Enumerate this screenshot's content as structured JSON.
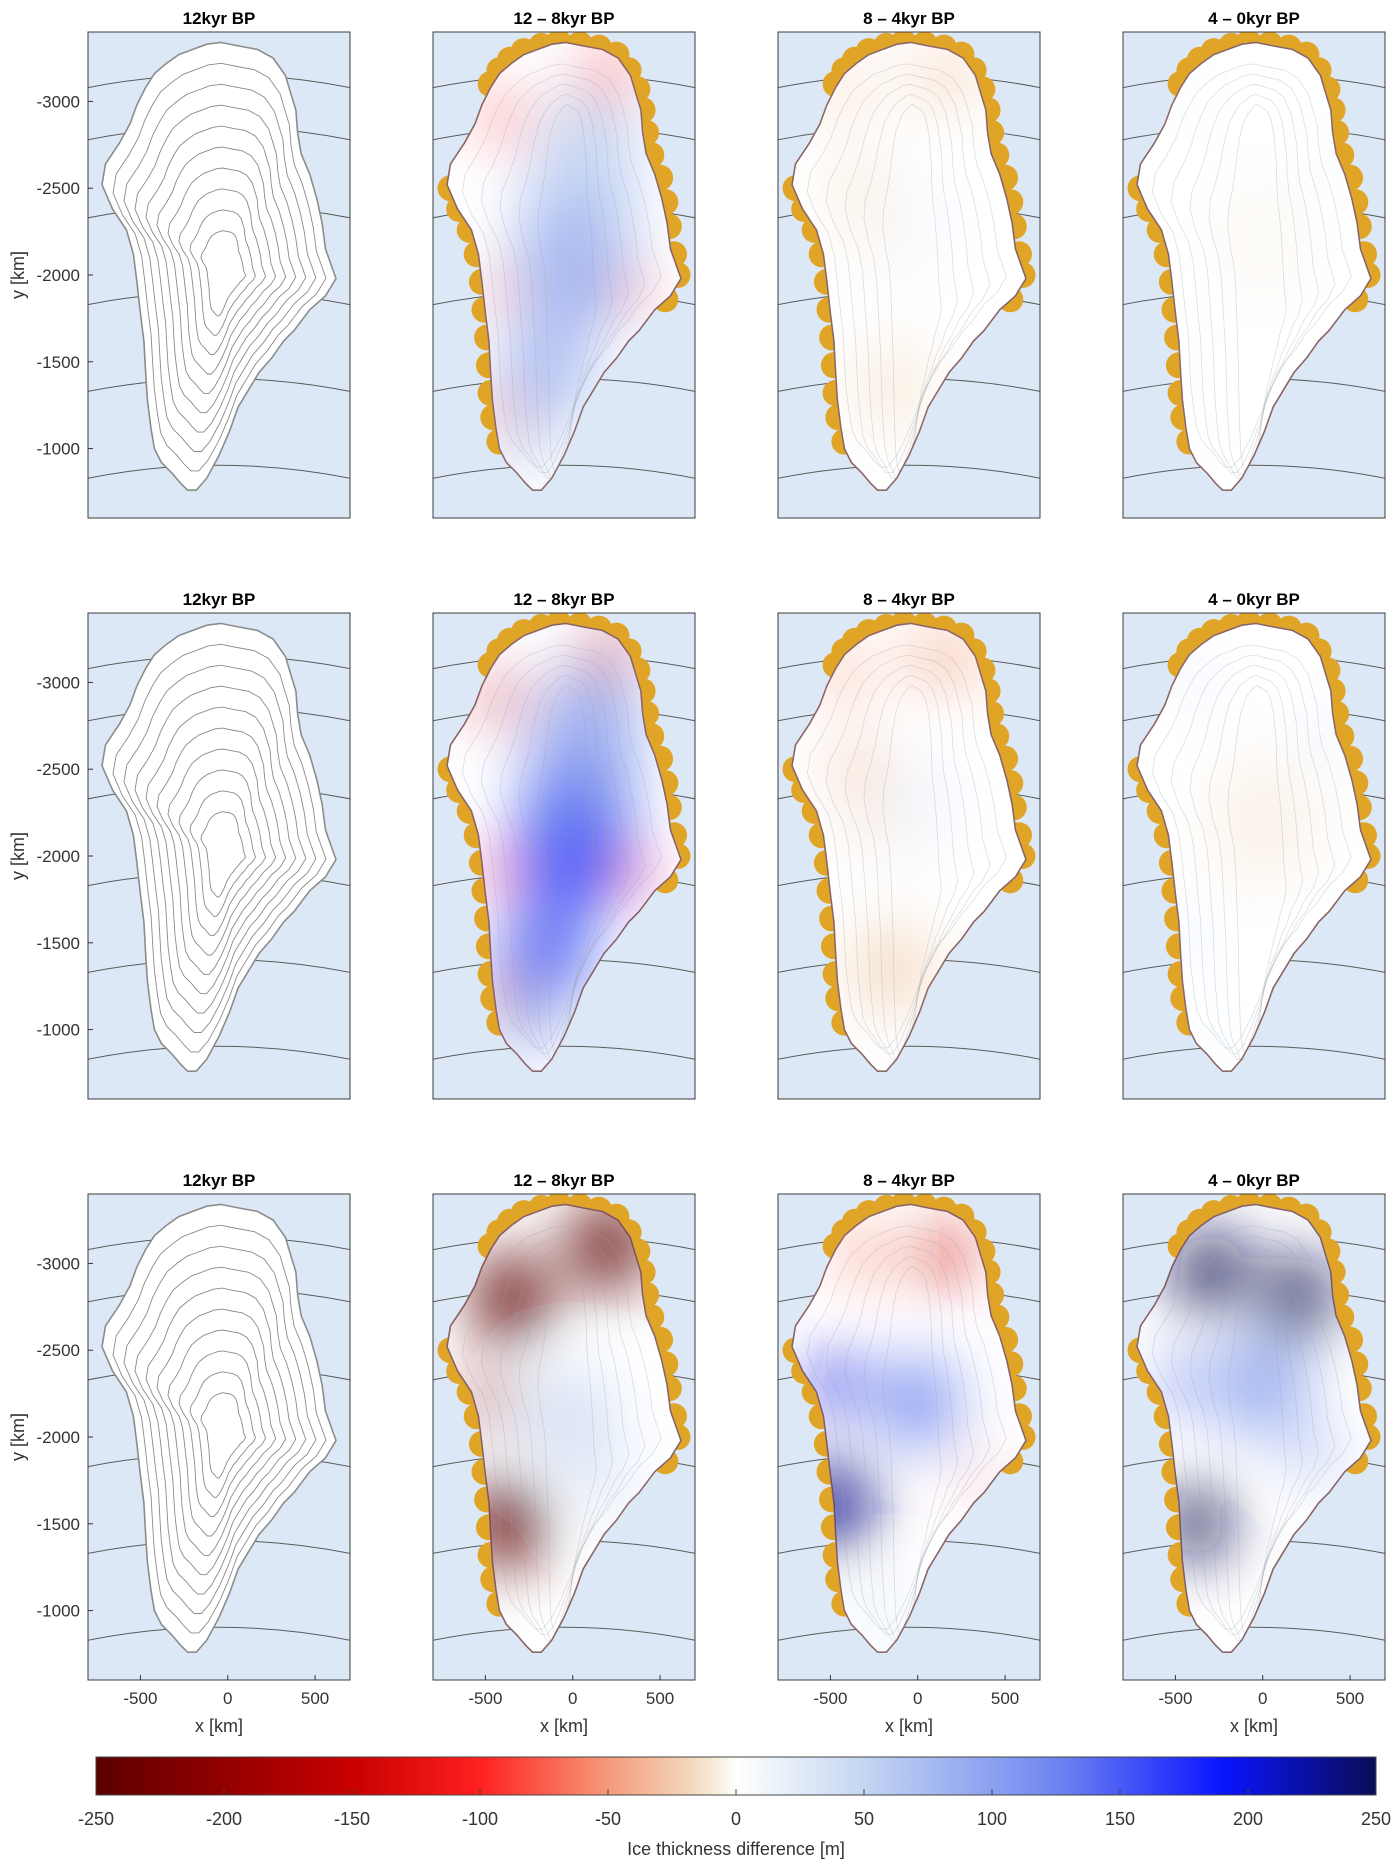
{
  "chart_data": {
    "type": "heatmap",
    "description_rows": 3,
    "description_cols": 4,
    "panel_titles": [
      "12kyr BP",
      "12 – 8kyr BP",
      "8 – 4kyr BP",
      "4 – 0kyr BP"
    ],
    "xlabel": "x [km]",
    "ylabel": "y [km]",
    "x_ticks": [
      -500,
      0,
      500
    ],
    "y_ticks": [
      -3000,
      -2500,
      -2000,
      -1500,
      -1000
    ],
    "xlim": [
      -800,
      700
    ],
    "ylim": [
      -3400,
      -600
    ],
    "y_reversed": true,
    "colorbar": {
      "label": "Ice thickness difference [m]",
      "range": [
        -250,
        250
      ],
      "ticks": [
        -250,
        -200,
        -150,
        -100,
        -50,
        0,
        50,
        100,
        150,
        200,
        250
      ],
      "colormap": [
        "#5c0000",
        "#c80000",
        "#ff2020",
        "#f59a7a",
        "#f2dcc0",
        "#ffffff",
        "#c4d6f2",
        "#6f86ef",
        "#0a14ff",
        "#0a0d55"
      ]
    },
    "colors": {
      "ocean": "#dce8f6",
      "ice_free_land": "#e0a526",
      "ice_outline": "#8c8c8c",
      "graticule": "#555555"
    },
    "series": [
      {
        "name": "12 – 8kyr BP",
        "relative_amplitude": [
          0.55,
          1.0,
          2.2
        ]
      },
      {
        "name": "8 – 4kyr BP",
        "relative_amplitude": [
          0.18,
          0.35,
          1.6
        ]
      },
      {
        "name": "4 – 0kyr BP",
        "relative_amplitude": [
          0.12,
          0.3,
          2.2
        ]
      }
    ]
  }
}
